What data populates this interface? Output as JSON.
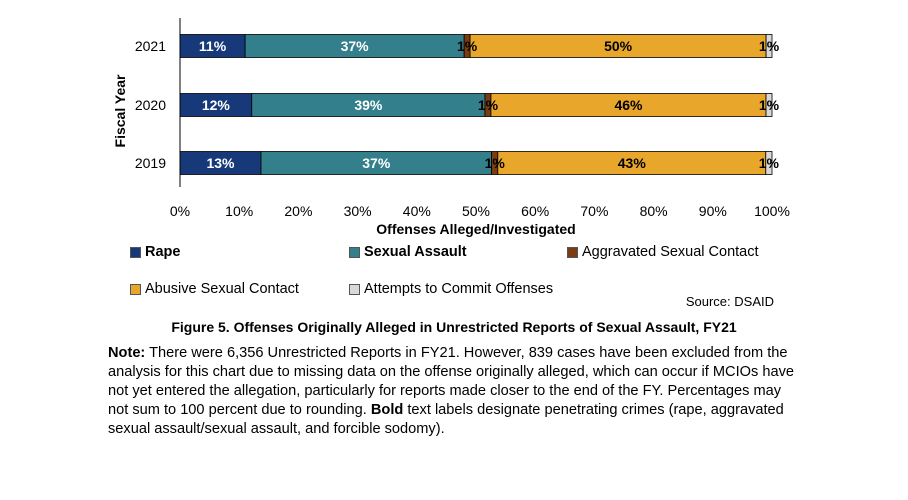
{
  "chart_data": {
    "type": "bar",
    "orientation": "horizontal",
    "stacked": true,
    "categories": [
      "2021",
      "2020",
      "2019"
    ],
    "series": [
      {
        "name": "Rape",
        "values": [
          11,
          12,
          13
        ],
        "labels": [
          "11%",
          "12%",
          "13%"
        ],
        "color": "#17397A",
        "bold": true
      },
      {
        "name": "Sexual Assault",
        "values": [
          37,
          39,
          37
        ],
        "labels": [
          "37%",
          "39%",
          "37%"
        ],
        "color": "#33808C",
        "bold": true
      },
      {
        "name": "Aggravated Sexual Contact",
        "values": [
          1,
          1,
          1
        ],
        "labels": [
          "1%",
          "1%",
          "1%"
        ],
        "color": "#7B3C0F",
        "bold": false
      },
      {
        "name": "Abusive Sexual Contact",
        "values": [
          50,
          46,
          43
        ],
        "labels": [
          "50%",
          "46%",
          "43%"
        ],
        "color": "#E8A62B",
        "bold": false
      },
      {
        "name": "Attempts to Commit Offenses",
        "values": [
          1,
          1,
          1
        ],
        "labels": [
          "1%",
          "1%",
          "1%"
        ],
        "color": "#D9D9D9",
        "bold": false
      }
    ],
    "xlabel": "Offenses Alleged/Investigated",
    "ylabel": "Fiscal Year",
    "xlim": [
      0,
      100
    ],
    "xticks": [
      "0%",
      "10%",
      "20%",
      "30%",
      "40%",
      "50%",
      "60%",
      "70%",
      "80%",
      "90%",
      "100%"
    ],
    "grid": false,
    "legend_position": "bottom"
  },
  "source": "Source: DSAID",
  "caption": "Figure 5.  Offenses Originally Alleged in Unrestricted Reports of Sexual Assault, FY21",
  "note": {
    "label": "Note:",
    "text1": "  There were 6,356 Unrestricted Reports in FY21.  However, 839 cases have been excluded from the analysis for this chart due to missing data on the offense originally alleged, which can occur if MCIOs have not yet entered the allegation, particularly for reports made closer to the end of the FY.  Percentages may not sum to 100 percent due to rounding.  ",
    "bold_word": "Bold",
    "text2": " text labels designate penetrating crimes (rape, aggravated sexual assault/sexual assault, and forcible sodomy)."
  }
}
